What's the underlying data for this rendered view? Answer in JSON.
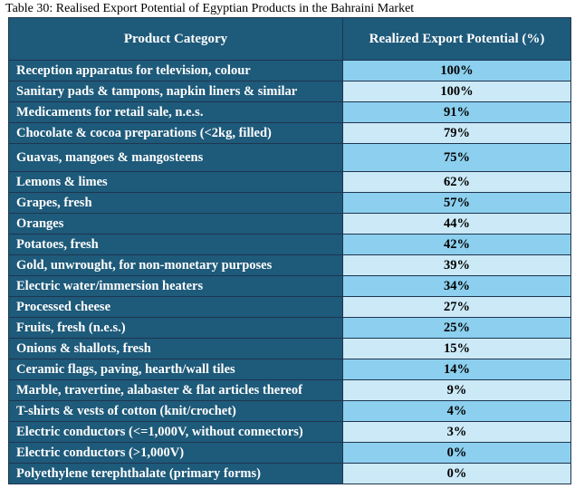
{
  "caption": "Table 30: Realised Export Potential of Egyptian Products in the Bahraini Market",
  "table": {
    "headers": [
      "Product Category",
      "Realized Export Potential (%)"
    ],
    "rows": [
      {
        "category": "Reception apparatus for television, colour",
        "value": "100%"
      },
      {
        "category": "Sanitary pads & tampons, napkin liners & similar",
        "value": "100%"
      },
      {
        "category": "Medicaments for retail sale, n.e.s.",
        "value": "91%"
      },
      {
        "category": "Chocolate & cocoa preparations (<2kg, filled)",
        "value": "79%"
      },
      {
        "category": "Guavas, mangoes & mangosteens",
        "value": "75%"
      },
      {
        "category": "Lemons & limes",
        "value": "62%"
      },
      {
        "category": "Grapes, fresh",
        "value": "57%"
      },
      {
        "category": "Oranges",
        "value": "44%"
      },
      {
        "category": "Potatoes, fresh",
        "value": "42%"
      },
      {
        "category": "Gold, unwrought, for non-monetary purposes",
        "value": "39%"
      },
      {
        "category": "Electric water/immersion heaters",
        "value": "34%"
      },
      {
        "category": "Processed cheese",
        "value": "27%"
      },
      {
        "category": "Fruits, fresh (n.e.s.)",
        "value": "25%"
      },
      {
        "category": "Onions & shallots, fresh",
        "value": "15%"
      },
      {
        "category": "Ceramic flags, paving, hearth/wall tiles",
        "value": "14%"
      },
      {
        "category": "Marble, travertine, alabaster & flat articles thereof",
        "value": "9%"
      },
      {
        "category": "T-shirts & vests of cotton (knit/crochet)",
        "value": "4%"
      },
      {
        "category": "Electric conductors (<=1,000V, without connectors)",
        "value": "3%"
      },
      {
        "category": "Electric conductors (>1,000V)",
        "value": "0%"
      },
      {
        "category": "Polyethylene terephthalate (primary forms)",
        "value": "0%"
      }
    ]
  },
  "colors": {
    "header_bg": "#1e5a7a",
    "cell_dark": "#8ccfee",
    "cell_light": "#cbe9f7"
  }
}
